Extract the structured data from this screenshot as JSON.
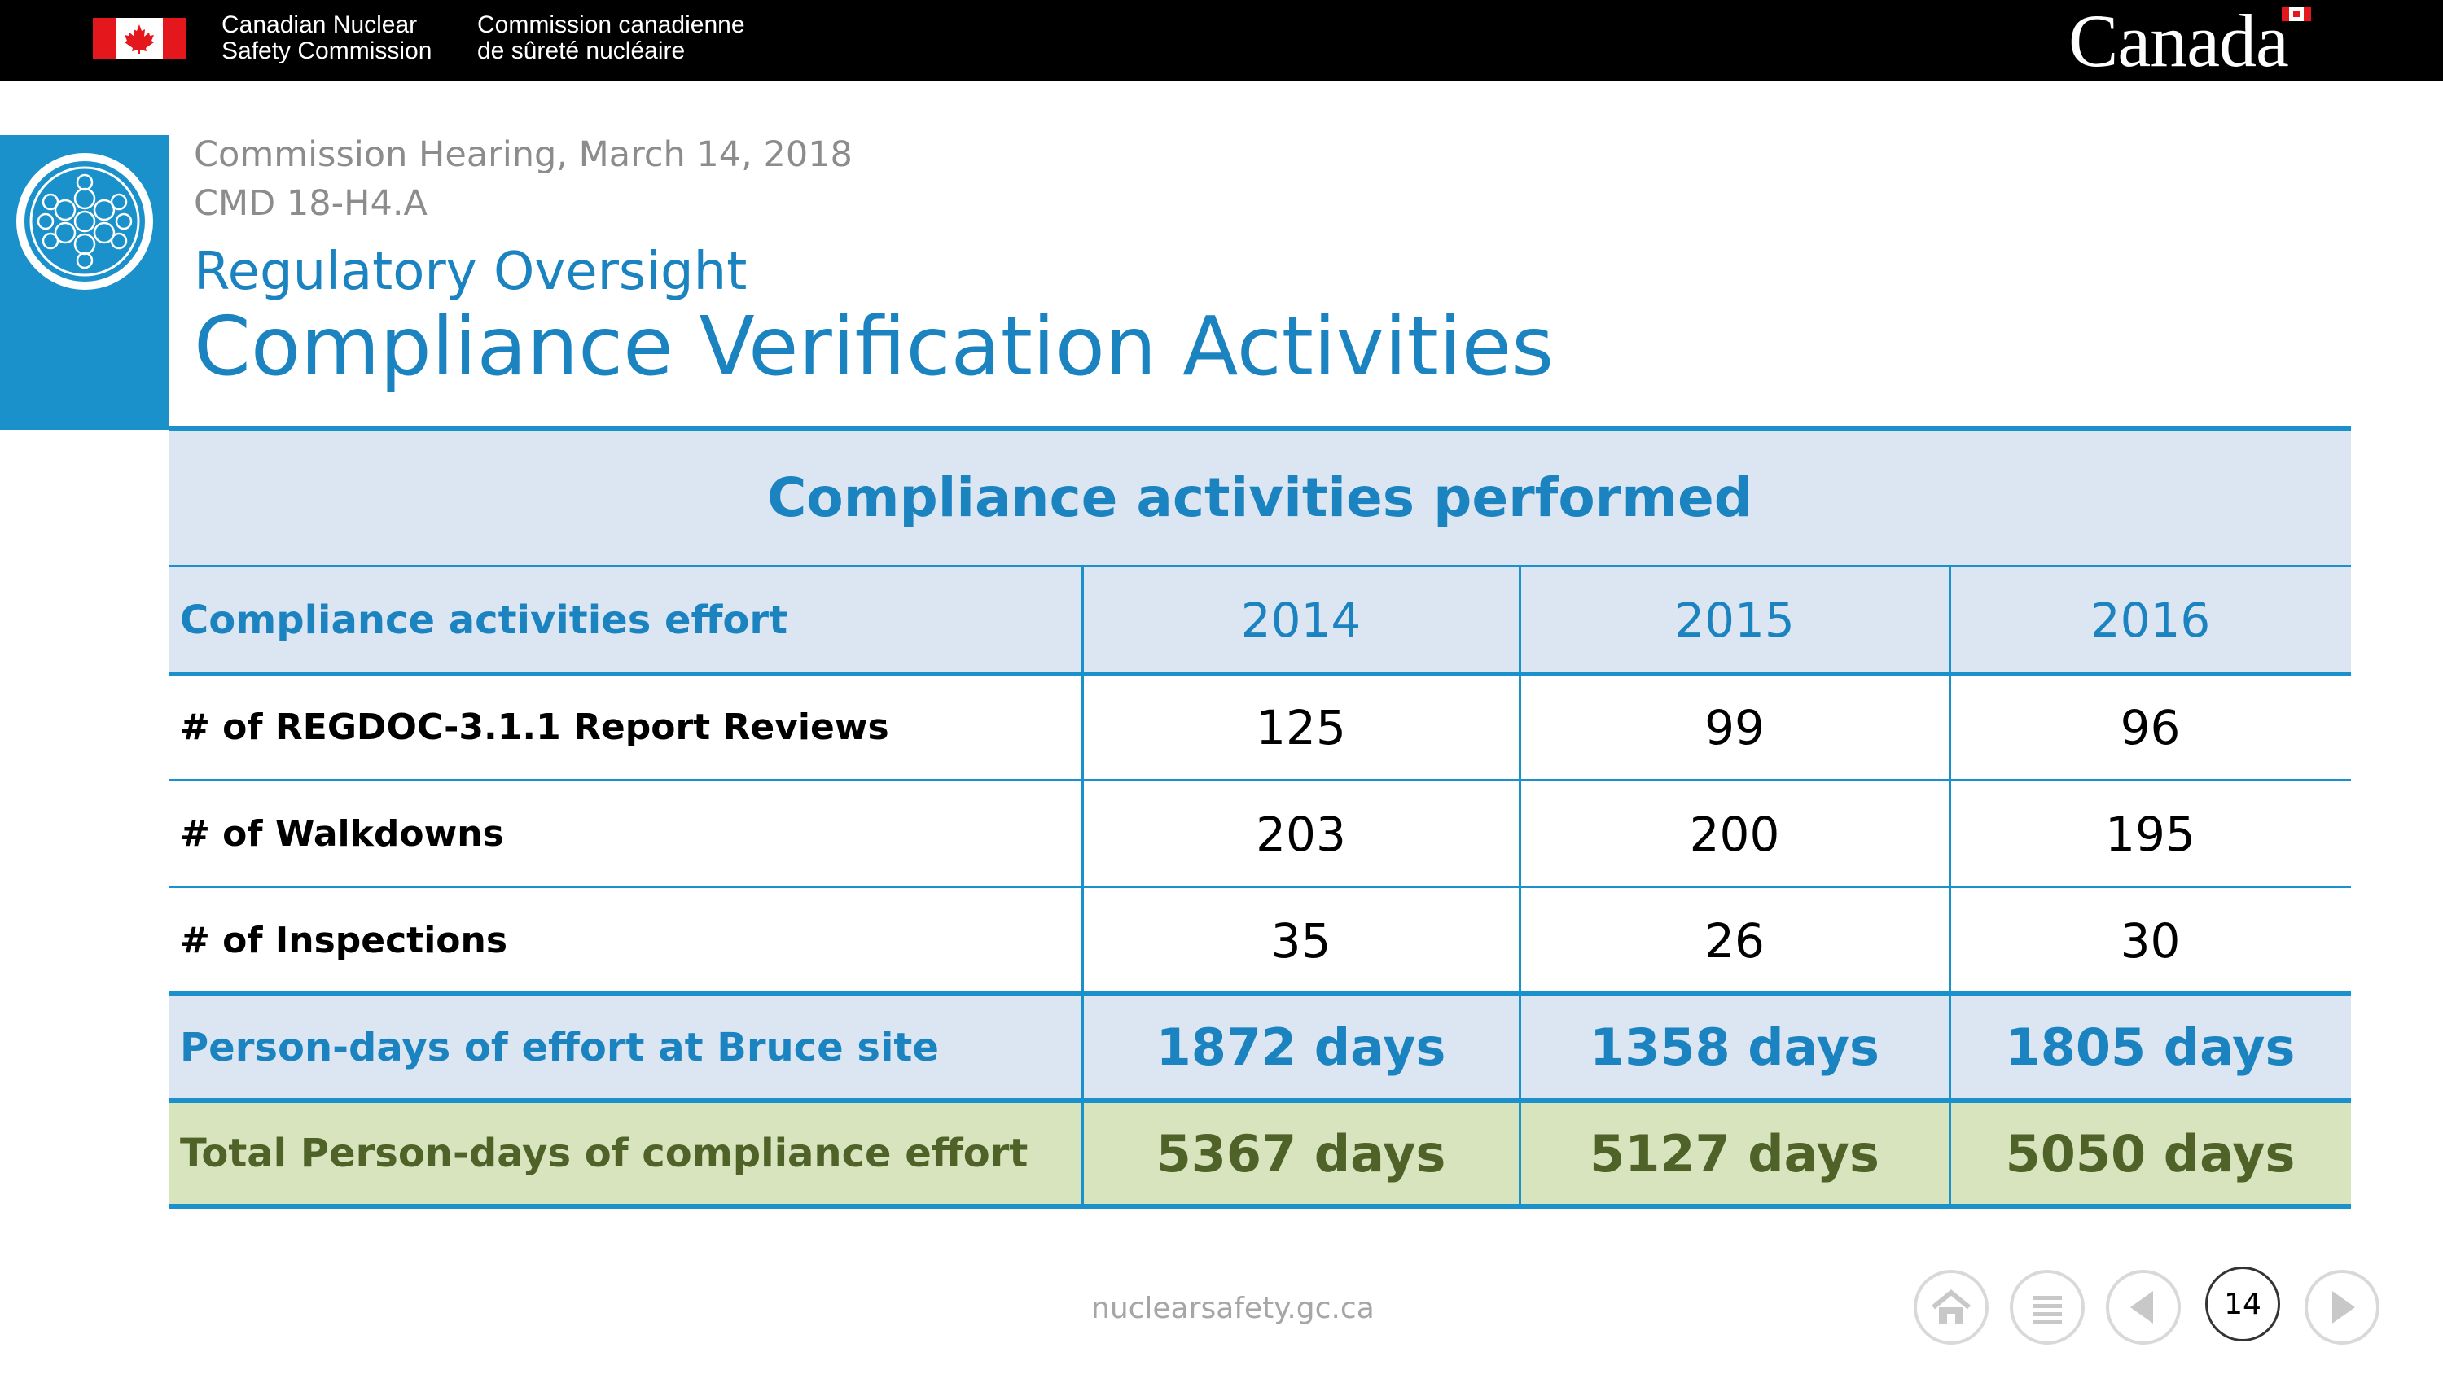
{
  "header": {
    "org_name_en_line1": "Canadian Nuclear",
    "org_name_en_line2": "Safety Commission",
    "org_name_fr_line1": "Commission canadienne",
    "org_name_fr_line2": "de sûreté nucléaire",
    "wordmark": "Canada",
    "icons": [
      "canada-flag-icon",
      "canada-wordmark-flag-icon",
      "cnsc-emblem-icon"
    ]
  },
  "slide": {
    "hearing": "Commission Hearing, March 14, 2018",
    "cmd": "CMD 18-H4.A",
    "subtitle": "Regulatory Oversight",
    "title": "Compliance Verification Activities"
  },
  "table": {
    "caption": "Compliance activities performed",
    "header": {
      "label": "Compliance activities effort",
      "years": [
        "2014",
        "2015",
        "2016"
      ]
    },
    "rows": [
      {
        "label": "# of REGDOC-3.1.1 Report Reviews",
        "values": [
          "125",
          "99",
          "96"
        ]
      },
      {
        "label": "# of Walkdowns",
        "values": [
          "203",
          "200",
          "195"
        ]
      },
      {
        "label": "# of Inspections",
        "values": [
          "35",
          "26",
          "30"
        ]
      }
    ],
    "person_days": {
      "label": "Person-days of effort at Bruce site",
      "values": [
        "1872 days",
        "1358 days",
        "1805 days"
      ]
    },
    "total": {
      "label": "Total Person-days of compliance effort",
      "values": [
        "5367 days",
        "5127 days",
        "5050 days"
      ]
    }
  },
  "footer": {
    "site": "nuclearsafety.gc.ca",
    "page_number": "14",
    "nav_icons": [
      "home-icon",
      "menu-icon",
      "previous-icon",
      "next-icon"
    ]
  },
  "colors": {
    "accent_blue": "#1a83c0",
    "band_blue": "#1a91cb",
    "light_blue_fill": "#dce6f2",
    "green_fill": "#d7e4bd",
    "olive_text": "#4f6228",
    "canada_red": "#e4181c"
  }
}
